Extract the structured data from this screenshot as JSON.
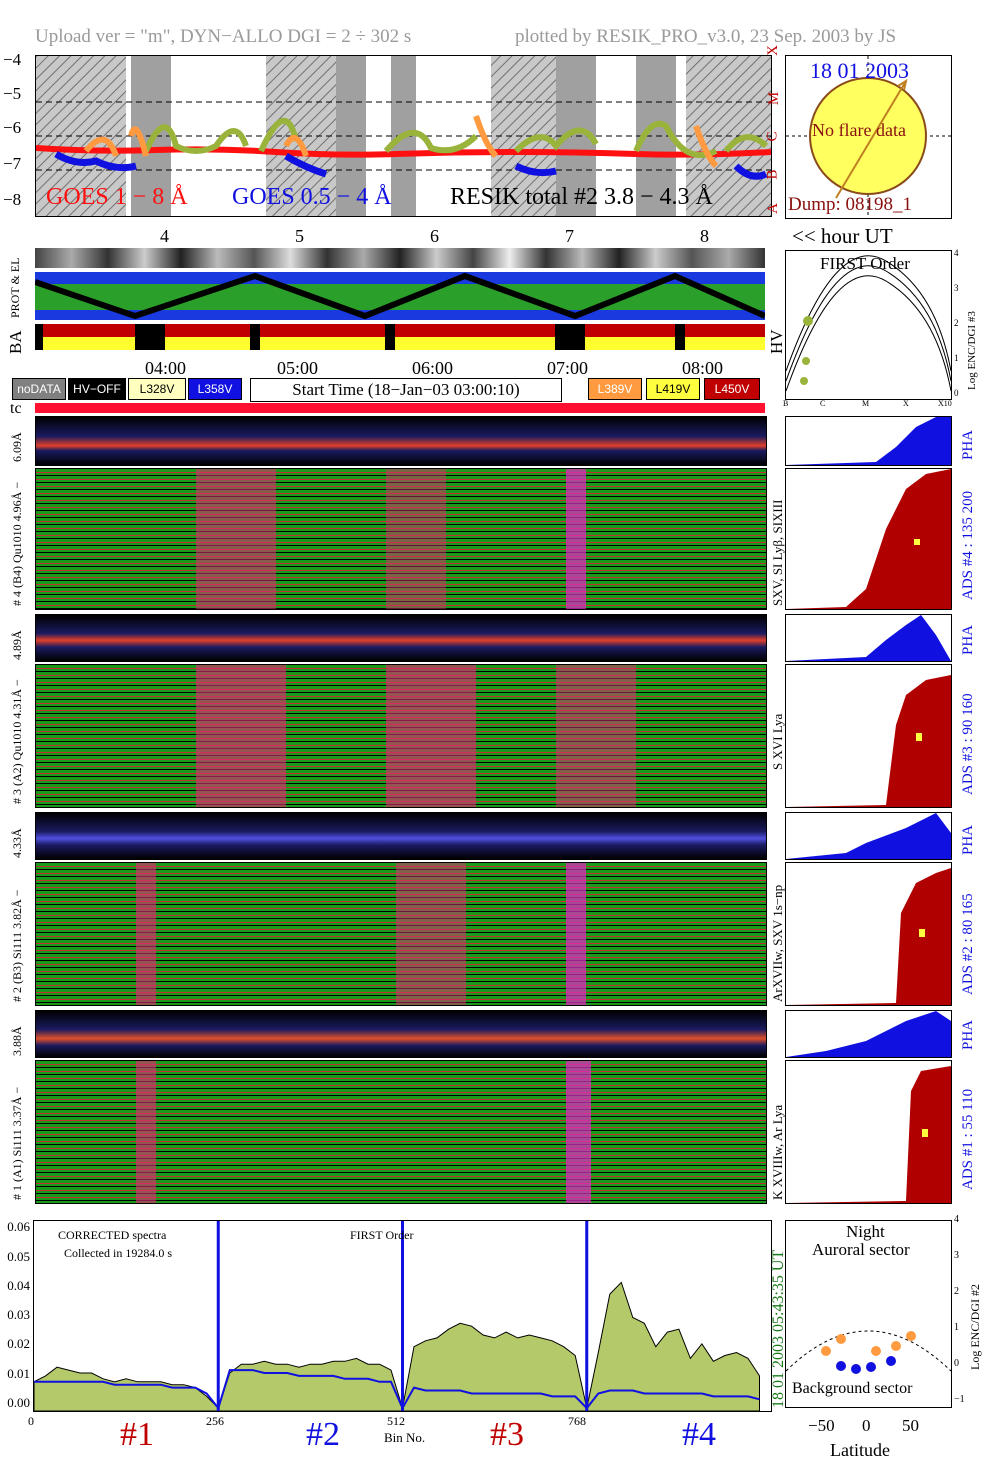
{
  "header": {
    "left": "Upload ver = \"m\", DYN−ALLO DGI =   2 ÷ 302 s",
    "right": "plotted by RESIK_PRO_v3.0, 23 Sep. 2003 by JS"
  },
  "goes": {
    "y_ticks": [
      "−4",
      "−5",
      "−6",
      "−7",
      "−8"
    ],
    "class_labels": [
      "X",
      "M",
      "C",
      "B",
      "A"
    ],
    "legend_goes_long": "GOES 1 − 8 Å",
    "legend_goes_short": "GOES 0.5 − 4 Å",
    "legend_resik": "RESIK total #2  3.8 − 4.3 Å",
    "hour_ticks": [
      "4",
      "5",
      "6",
      "7",
      "8"
    ],
    "hour_unit": "<< hour UT",
    "colors": {
      "long": "#ff1010",
      "short": "#1010e0",
      "resik": "#000000"
    }
  },
  "sun": {
    "date": "18 01 2003",
    "flare": "No flare data",
    "dump": "Dump: 08198_1"
  },
  "status": {
    "label_prot": "PROT & EL",
    "label_ba": "BA",
    "label_hv": "HV"
  },
  "time_axis": {
    "ticks": [
      "04:00",
      "05:00",
      "06:00",
      "07:00",
      "08:00"
    ],
    "start_time": "Start Time (18−Jan−03 03:00:10)",
    "legend": [
      {
        "label": "noDATA",
        "bg": "#808080",
        "fg": "#ffffff"
      },
      {
        "label": "HV−OFF",
        "bg": "#000000",
        "fg": "#ffffff"
      },
      {
        "label": "L328V",
        "bg": "#ffffc0",
        "fg": "#000000"
      },
      {
        "label": "L358V",
        "bg": "#1010e0",
        "fg": "#ffffff"
      },
      {
        "label": "L389V",
        "bg": "#ff9a40",
        "fg": "#ffffff"
      },
      {
        "label": "L419V",
        "bg": "#ffff40",
        "fg": "#000000"
      },
      {
        "label": "L450V",
        "bg": "#c00000",
        "fg": "#ffffff"
      }
    ],
    "tc": "tc"
  },
  "first_order": {
    "title": "FIRST Order",
    "x_ticks": [
      "B",
      "C",
      "M",
      "X",
      "X10"
    ],
    "y_ticks": [
      "0",
      "1",
      "2",
      "3",
      "4"
    ],
    "ylabel": "Log ENC/DGI #3"
  },
  "channels": [
    {
      "pha_label": "6.09Å",
      "left_label": "# 4 (B4) Qu1010 4.96Å −",
      "right_label": "SXV, SI Lyβ, SIXIII",
      "ads": "ADS #4 :   135 200"
    },
    {
      "pha_label": "4.89Å",
      "left_label": "# 3 (A2) Qu1010 4.31Å −",
      "right_label": "S XVI Lya",
      "ads": "ADS #3 :   90 160"
    },
    {
      "pha_label": "4.33Å",
      "left_label": "# 2 (B3) Si111 3.82Å −",
      "right_label": "ArXVIIw, SXV 1s−np",
      "ads": "ADS #2 :   80 165"
    },
    {
      "pha_label": "3.88Å",
      "left_label": "# 1 (A1) Si111 3.37Å −",
      "right_label": "K XVIIIw, Ar Lya",
      "ads": "ADS #1 :   55 110"
    }
  ],
  "pha_text": "PHA",
  "bottom": {
    "title": "CORRECTED spectra",
    "collected": "Collected in 19284.0 s",
    "first_order": "FIRST Order",
    "date_time": "18 01 2003   05:43:35 UT",
    "xlabel": "Bin No.",
    "x_ticks": [
      "0",
      "256",
      "512",
      "768"
    ],
    "y_ticks": [
      "0.06",
      "0.05",
      "0.04",
      "0.03",
      "0.02",
      "0.01",
      "0.00"
    ],
    "channels": [
      "#1",
      "#2",
      "#3",
      "#4"
    ]
  },
  "auroral": {
    "night": "Night",
    "auroral": "Auroral sector",
    "background": "Background sector",
    "xlabel": "Latitude",
    "x_ticks": [
      "−50",
      "0",
      "50"
    ],
    "y_ticks": [
      "4",
      "3",
      "2",
      "1",
      "0",
      "−1"
    ],
    "ylabel": "Log ENC/DGI #2"
  },
  "chart_data": {
    "type": "line",
    "title": "",
    "xlabel": "Bin No.",
    "ylabel": "",
    "ylim": [
      0.0,
      0.065
    ],
    "x": [
      0,
      16,
      32,
      48,
      64,
      80,
      96,
      112,
      128,
      144,
      160,
      176,
      192,
      208,
      224,
      240,
      256,
      272,
      288,
      304,
      320,
      336,
      352,
      368,
      384,
      400,
      416,
      432,
      448,
      464,
      480,
      496,
      512,
      528,
      544,
      560,
      576,
      592,
      608,
      624,
      640,
      656,
      672,
      688,
      704,
      720,
      736,
      752,
      768,
      784,
      800,
      816,
      832,
      848,
      864,
      880,
      896,
      912,
      928,
      944,
      960,
      976,
      992,
      1008
    ],
    "series": [
      {
        "values": [
          0.01,
          0.012,
          0.015,
          0.014,
          0.013,
          0.013,
          0.011,
          0.01,
          0.011,
          0.01,
          0.01,
          0.01,
          0.009,
          0.009,
          0.008,
          0.005,
          0.001,
          0.013,
          0.016,
          0.016,
          0.017,
          0.016,
          0.016,
          0.015,
          0.016,
          0.016,
          0.017,
          0.017,
          0.018,
          0.016,
          0.016,
          0.014,
          0.001,
          0.022,
          0.024,
          0.025,
          0.028,
          0.03,
          0.029,
          0.026,
          0.025,
          0.027,
          0.025,
          0.026,
          0.025,
          0.024,
          0.022,
          0.019,
          0.001,
          0.02,
          0.04,
          0.044,
          0.032,
          0.03,
          0.022,
          0.027,
          0.028,
          0.018,
          0.023,
          0.017,
          0.019,
          0.02,
          0.018,
          0.012
        ]
      },
      {
        "values": [
          0.01,
          0.01,
          0.01,
          0.01,
          0.01,
          0.01,
          0.01,
          0.009,
          0.009,
          0.009,
          0.009,
          0.009,
          0.008,
          0.008,
          0.008,
          0.006,
          0.001,
          0.014,
          0.014,
          0.014,
          0.013,
          0.013,
          0.013,
          0.012,
          0.012,
          0.012,
          0.012,
          0.011,
          0.011,
          0.011,
          0.01,
          0.01,
          0.001,
          0.008,
          0.007,
          0.007,
          0.007,
          0.007,
          0.006,
          0.006,
          0.006,
          0.006,
          0.006,
          0.006,
          0.006,
          0.005,
          0.005,
          0.005,
          0.001,
          0.006,
          0.007,
          0.007,
          0.007,
          0.006,
          0.006,
          0.006,
          0.006,
          0.006,
          0.006,
          0.005,
          0.005,
          0.005,
          0.005,
          0.004
        ]
      }
    ]
  }
}
